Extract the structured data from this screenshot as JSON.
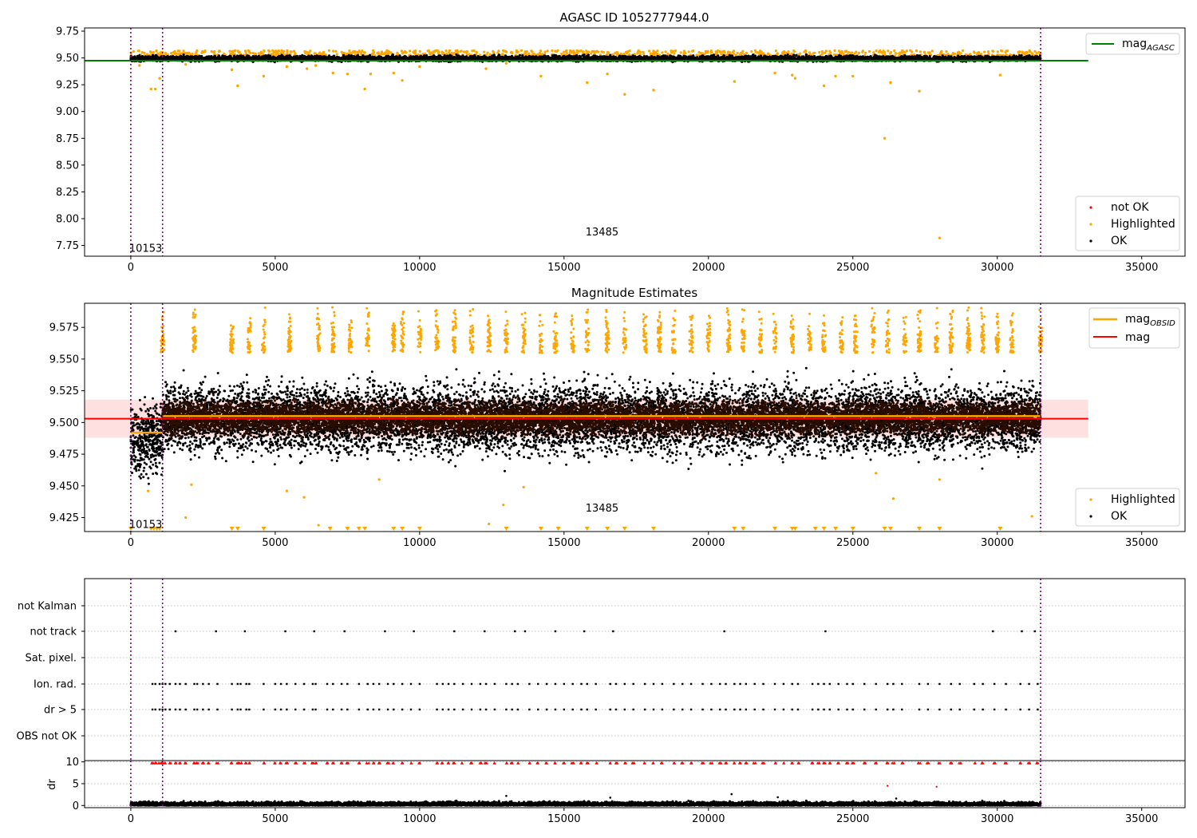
{
  "chart_data": [
    {
      "type": "scatter",
      "title": "AGASC ID 1052777944.0",
      "xlim": [
        -1600,
        36500
      ],
      "ylim": [
        7.65,
        9.78
      ],
      "xticks": [
        0,
        5000,
        10000,
        15000,
        20000,
        25000,
        30000,
        35000
      ],
      "yticks": [
        7.75,
        8.0,
        8.25,
        8.5,
        8.75,
        9.0,
        9.25,
        9.5,
        9.75
      ],
      "ytick_labels": [
        "7.75",
        "8.00",
        "8.25",
        "8.50",
        "8.75",
        "9.00",
        "9.25",
        "9.50",
        "9.75"
      ],
      "vlines": [
        0,
        1100,
        31500
      ],
      "obsid_labels": [
        {
          "x": 0,
          "y": 7.73,
          "text": "10153"
        },
        {
          "x": 15800,
          "y": 7.88,
          "text": "13485"
        }
      ],
      "hline": {
        "name": "mag_AGASC",
        "y": 9.475,
        "x": [
          -1600,
          33150
        ],
        "color": "#008000"
      },
      "series": [
        {
          "name": "OK",
          "color": "#000000",
          "band": {
            "x": [
              0,
              31500
            ],
            "y": [
              9.46,
              9.53
            ]
          }
        },
        {
          "name": "Highlighted",
          "color": "#FFA500",
          "values": [
            [
              300,
              9.43
            ],
            [
              700,
              9.21
            ],
            [
              850,
              9.21
            ],
            [
              1000,
              9.31
            ],
            [
              1900,
              9.44
            ],
            [
              3500,
              9.39
            ],
            [
              3700,
              9.24
            ],
            [
              4600,
              9.33
            ],
            [
              5400,
              9.42
            ],
            [
              6100,
              9.4
            ],
            [
              6400,
              9.43
            ],
            [
              7000,
              9.36
            ],
            [
              7500,
              9.35
            ],
            [
              8100,
              9.21
            ],
            [
              8300,
              9.35
            ],
            [
              9100,
              9.36
            ],
            [
              9400,
              9.29
            ],
            [
              10000,
              9.42
            ],
            [
              12300,
              9.4
            ],
            [
              13000,
              9.45
            ],
            [
              14200,
              9.33
            ],
            [
              15800,
              9.27
            ],
            [
              16500,
              9.35
            ],
            [
              17100,
              9.16
            ],
            [
              18100,
              9.2
            ],
            [
              20900,
              9.28
            ],
            [
              22300,
              9.36
            ],
            [
              22900,
              9.34
            ],
            [
              23000,
              9.31
            ],
            [
              24000,
              9.24
            ],
            [
              24400,
              9.33
            ],
            [
              25000,
              9.33
            ],
            [
              26100,
              8.75
            ],
            [
              26300,
              9.27
            ],
            [
              27300,
              9.19
            ],
            [
              28000,
              7.82
            ],
            [
              30100,
              9.34
            ]
          ]
        },
        {
          "name": "not OK",
          "color": "#FF0000",
          "values": []
        }
      ],
      "legend_top": [
        "mag_AGASC"
      ],
      "legend_bottom": [
        "not OK",
        "Highlighted",
        "OK"
      ]
    },
    {
      "type": "scatter",
      "title": "Magnitude Estimates",
      "xlim": [
        -1600,
        36500
      ],
      "ylim": [
        9.414,
        9.594
      ],
      "xticks": [
        0,
        5000,
        10000,
        15000,
        20000,
        25000,
        30000,
        35000
      ],
      "yticks": [
        9.425,
        9.45,
        9.475,
        9.5,
        9.525,
        9.55,
        9.575
      ],
      "ytick_labels": [
        "9.425",
        "9.450",
        "9.475",
        "9.500",
        "9.525",
        "9.550",
        "9.575"
      ],
      "vlines": [
        0,
        1100,
        31500
      ],
      "obsid_labels": [
        {
          "x": 0,
          "y": 9.42,
          "text": "10153"
        },
        {
          "x": 15800,
          "y": 9.433,
          "text": "13485"
        }
      ],
      "mag": {
        "name": "mag",
        "y": 9.503,
        "band": [
          9.488,
          9.518
        ],
        "x": [
          -1600,
          33150
        ],
        "color": "#FF0000"
      },
      "mag_obsid": [
        {
          "name": "mag_OBSID",
          "x": [
            0,
            1100
          ],
          "y": 9.492,
          "color": "#FFA500"
        },
        {
          "name": "mag_OBSID",
          "x": [
            1100,
            31500
          ],
          "y": 9.505,
          "color": "#FFA500"
        }
      ],
      "series": [
        {
          "name": "OK",
          "color": "#000000",
          "band": {
            "x": [
              0,
              31500
            ],
            "y": [
              9.46,
              9.545
            ]
          }
        },
        {
          "name": "Highlighted",
          "color": "#FFA500",
          "spikes_y": [
            9.555,
            9.593
          ],
          "spike_x": [
            1100,
            2200,
            3500,
            4100,
            4600,
            5500,
            6500,
            7000,
            7600,
            8200,
            9100,
            9400,
            10000,
            10600,
            11200,
            11800,
            12400,
            13000,
            13600,
            14200,
            14700,
            15300,
            15800,
            16500,
            17100,
            17800,
            18300,
            18800,
            19400,
            20000,
            20700,
            21200,
            21800,
            22300,
            22900,
            23500,
            24000,
            24600,
            25100,
            25700,
            26200,
            26800,
            27300,
            27900,
            28400,
            29000,
            29500,
            30000,
            30500,
            31500
          ],
          "outliers": [
            [
              600,
              9.446
            ],
            [
              1900,
              9.425
            ],
            [
              2100,
              9.451
            ],
            [
              5400,
              9.446
            ],
            [
              6000,
              9.441
            ],
            [
              6500,
              9.419
            ],
            [
              8600,
              9.455
            ],
            [
              12400,
              9.42
            ],
            [
              12900,
              9.435
            ],
            [
              13600,
              9.449
            ],
            [
              25800,
              9.46
            ],
            [
              26400,
              9.44
            ],
            [
              28000,
              9.455
            ],
            [
              31200,
              9.426
            ]
          ],
          "markers_low": [
            0,
            700,
            800,
            900,
            1000,
            3500,
            3700,
            4600,
            6900,
            7500,
            7900,
            8100,
            9100,
            9400,
            10000,
            13000,
            14200,
            14800,
            15800,
            16500,
            17100,
            18100,
            20900,
            21200,
            22300,
            22900,
            23000,
            23700,
            24000,
            24400,
            25000,
            26100,
            26300,
            27300,
            28000,
            30100
          ]
        }
      ],
      "legend_top": [
        "mag_OBSID",
        "mag"
      ],
      "legend_bottom": [
        "Highlighted",
        "OK"
      ]
    },
    {
      "type": "scatter",
      "title": "",
      "xlim": [
        -1600,
        36500
      ],
      "xticks": [
        0,
        5000,
        10000,
        15000,
        20000,
        25000,
        30000,
        35000
      ],
      "categories": [
        "not Kalman",
        "not track",
        "Sat. pixel.",
        "Ion. rad.",
        "dr > 5",
        "OBS not OK"
      ],
      "vlines": [
        0,
        1100,
        31500
      ],
      "flags": {
        "not Kalman": [],
        "not track": [
          1550,
          2950,
          3950,
          5350,
          6350,
          7400,
          8800,
          9800,
          11200,
          12250,
          13300,
          13650,
          14700,
          15700,
          16700,
          20550,
          24050,
          29850,
          30850,
          31300
        ],
        "Sat. pixel.": [],
        "Ion. rad.": [
          750,
          850,
          1000,
          1100,
          1200,
          1350,
          1550,
          1700,
          1900,
          2200,
          2300,
          2500,
          2700,
          3000,
          3500,
          3700,
          3800,
          4000,
          4100,
          4600,
          5000,
          5200,
          5400,
          5700,
          6000,
          6300,
          6400,
          6800,
          7000,
          7300,
          7500,
          7900,
          8200,
          8400,
          8600,
          8900,
          9100,
          9400,
          9700,
          10000,
          10600,
          10800,
          11000,
          11200,
          11500,
          11800,
          12100,
          12300,
          12600,
          13000,
          13200,
          13400,
          13800,
          14100,
          14400,
          14700,
          15000,
          15300,
          15600,
          15800,
          16100,
          16600,
          16800,
          17100,
          17400,
          17800,
          18100,
          18400,
          18800,
          19100,
          19400,
          19800,
          20100,
          20400,
          20600,
          20900,
          21100,
          21300,
          21600,
          21900,
          22300,
          22600,
          22900,
          23100,
          23600,
          23800,
          24000,
          24200,
          24500,
          24800,
          25000,
          25400,
          25800,
          26200,
          26400,
          26700,
          27300,
          27600,
          28000,
          28400,
          28700,
          29200,
          29500,
          29900,
          30300,
          30800,
          31100,
          31400
        ],
        "dr > 5": [
          750,
          850,
          1000,
          1100,
          1200,
          1350,
          1550,
          1700,
          1900,
          2200,
          2300,
          2500,
          2700,
          3000,
          3500,
          3700,
          3800,
          4000,
          4100,
          4600,
          5000,
          5200,
          5400,
          5700,
          6000,
          6300,
          6400,
          6800,
          7000,
          7300,
          7500,
          7900,
          8200,
          8400,
          8600,
          8900,
          9100,
          9400,
          9700,
          10000,
          10600,
          10800,
          11000,
          11200,
          11500,
          11800,
          12100,
          12300,
          12600,
          13000,
          13200,
          13400,
          13800,
          14100,
          14400,
          14700,
          15000,
          15300,
          15600,
          15800,
          16100,
          16600,
          16800,
          17100,
          17400,
          17800,
          18100,
          18400,
          18800,
          19100,
          19400,
          19800,
          20100,
          20400,
          20600,
          20900,
          21100,
          21300,
          21600,
          21900,
          22300,
          22600,
          22900,
          23100,
          23600,
          23800,
          24000,
          24200,
          24500,
          24800,
          25000,
          25400,
          25800,
          26200,
          26400,
          26700,
          27300,
          27600,
          28000,
          28400,
          28700,
          29200,
          29500,
          29900,
          30300,
          30800,
          31100,
          31400
        ],
        "OBS not OK": []
      }
    },
    {
      "type": "scatter",
      "title": "",
      "ylabel": "dr",
      "xlim": [
        -1600,
        36500
      ],
      "ylim": [
        -0.5,
        10.3
      ],
      "xticks": [
        0,
        5000,
        10000,
        15000,
        20000,
        25000,
        30000,
        35000
      ],
      "yticks": [
        0,
        5,
        10
      ],
      "ytick_labels": [
        "0",
        "5",
        "10"
      ],
      "vlines": [
        0,
        1100,
        31500
      ],
      "series": [
        {
          "name": "dr",
          "color": "#000000",
          "band": {
            "x": [
              0,
              31500
            ],
            "y": [
              0,
              1.0
            ]
          },
          "outliers": [
            [
              13000,
              2.2
            ],
            [
              20800,
              2.6
            ],
            [
              16600,
              1.8
            ],
            [
              22400,
              1.9
            ],
            [
              26500,
              1.6
            ]
          ]
        },
        {
          "name": "dr > 5",
          "color": "#FF0000",
          "clipped_y": 9.7,
          "extra": [
            [
              26200,
              4.5
            ],
            [
              27900,
              4.3
            ]
          ]
        }
      ]
    }
  ]
}
